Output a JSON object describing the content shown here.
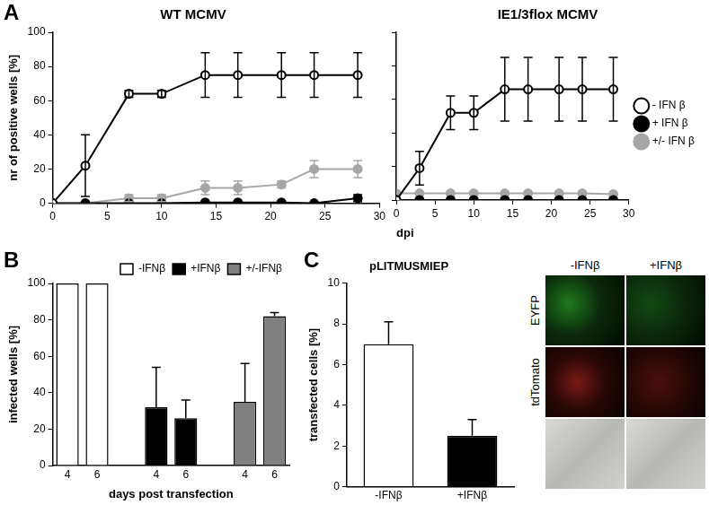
{
  "chart_data": [
    {
      "panel_label": "A",
      "type": "line",
      "title": "WT MCMV",
      "y_label": "nr of positive wells [%]",
      "xlim": [
        0,
        30
      ],
      "xticks": [
        0,
        5,
        10,
        15,
        20,
        25,
        30
      ],
      "ylim": [
        0,
        100
      ],
      "yticks": [
        0,
        20,
        40,
        60,
        80,
        100
      ],
      "grid": false,
      "x": [
        0,
        3,
        7,
        10,
        14,
        17,
        21,
        24,
        28
      ],
      "series": [
        {
          "name": "- IFN β",
          "color": "#000000",
          "marker": "open_circle",
          "values": [
            0,
            22,
            64,
            64,
            75,
            75,
            75,
            75,
            75
          ],
          "errors": [
            0,
            18,
            2,
            2,
            13,
            13,
            13,
            13,
            13
          ]
        },
        {
          "name": "+ IFN β",
          "color": "#000000",
          "marker": "circle",
          "values": [
            0,
            0,
            0,
            0,
            0.5,
            0.5,
            0.5,
            0,
            3
          ],
          "errors": [
            0,
            0,
            0,
            0,
            0,
            0,
            0,
            0,
            2
          ]
        },
        {
          "name": "+/- IFN β",
          "color": "#a6a6a6",
          "marker": "circle",
          "values": [
            0,
            0,
            3,
            3,
            9,
            9,
            11,
            20,
            20
          ],
          "errors": [
            0,
            0,
            2,
            2,
            4,
            4,
            2,
            5,
            5
          ]
        }
      ]
    },
    {
      "type": "line",
      "title": "IE1/3flox MCMV",
      "x_label": "dpi",
      "xlim": [
        0,
        30
      ],
      "xticks": [
        0,
        5,
        10,
        15,
        20,
        25,
        30
      ],
      "ylim": [
        0,
        100
      ],
      "yticks": [
        0,
        20,
        40,
        60,
        80,
        100
      ],
      "grid": false,
      "tick_labels": "x",
      "legend": "right",
      "x": [
        0,
        3,
        7,
        10,
        14,
        17,
        21,
        24,
        28
      ],
      "series": [
        {
          "name": "- IFN β",
          "color": "#000000",
          "marker": "open_circle",
          "values": [
            0,
            19,
            52,
            52,
            66,
            66,
            66,
            66,
            66
          ],
          "errors": [
            0,
            10,
            10,
            10,
            19,
            19,
            19,
            19,
            19
          ]
        },
        {
          "name": "+ IFN β",
          "color": "#000000",
          "marker": "circle",
          "values": [
            0,
            0,
            0,
            0,
            0,
            0,
            0,
            0,
            0
          ],
          "errors": [
            0,
            0,
            0,
            0,
            0,
            0,
            0,
            0,
            0
          ]
        },
        {
          "name": "+/- IFN β",
          "color": "#a6a6a6",
          "marker": "circle",
          "values": [
            4,
            4,
            4,
            4,
            4,
            4,
            4,
            4,
            3.5
          ],
          "errors": [
            0,
            0,
            0,
            0,
            0,
            0,
            0,
            0,
            0
          ]
        }
      ]
    },
    {
      "panel_label": "B",
      "type": "bar",
      "x_label": "days post transfection",
      "y_label": "infected wells [%]",
      "categories": [
        "4",
        "6",
        null,
        "4",
        "6",
        null,
        "4",
        "6"
      ],
      "ylim": [
        0,
        100
      ],
      "yticks": [
        0,
        20,
        40,
        60,
        80,
        100
      ],
      "grid": false,
      "legend": "top-right",
      "series": [
        {
          "name": "-IFNβ",
          "color": "#ffffff",
          "values": [
            100,
            100,
            null,
            null,
            null,
            null,
            null,
            null
          ],
          "errors": [
            0,
            0,
            null,
            null,
            null,
            null,
            null,
            null
          ]
        },
        {
          "name": "+IFNβ",
          "color": "#000000",
          "values": [
            null,
            null,
            null,
            32,
            26,
            null,
            null,
            null
          ],
          "errors": [
            null,
            null,
            null,
            22,
            10,
            null,
            null,
            null
          ]
        },
        {
          "name": "+/-IFNβ",
          "color": "#808080",
          "values": [
            null,
            null,
            null,
            null,
            null,
            null,
            35,
            82
          ],
          "errors": [
            null,
            null,
            null,
            null,
            null,
            null,
            21,
            2
          ]
        }
      ]
    },
    {
      "panel_label": "C",
      "type": "bar",
      "title": "pLITMUSMIEP",
      "y_label": "transfected cells [%]",
      "categories": [
        "-IFNβ",
        "+IFNβ"
      ],
      "values": [
        7,
        2.5
      ],
      "errors": [
        1.1,
        0.8
      ],
      "colors": [
        "#ffffff",
        "#000000"
      ],
      "ylim": [
        0,
        10
      ],
      "yticks": [
        0,
        2,
        4,
        6,
        8,
        10
      ],
      "grid": false
    }
  ],
  "images": {
    "columns": [
      "-IFNβ",
      "+IFNβ"
    ],
    "rows": [
      "EYFP",
      "tdTomato"
    ]
  }
}
